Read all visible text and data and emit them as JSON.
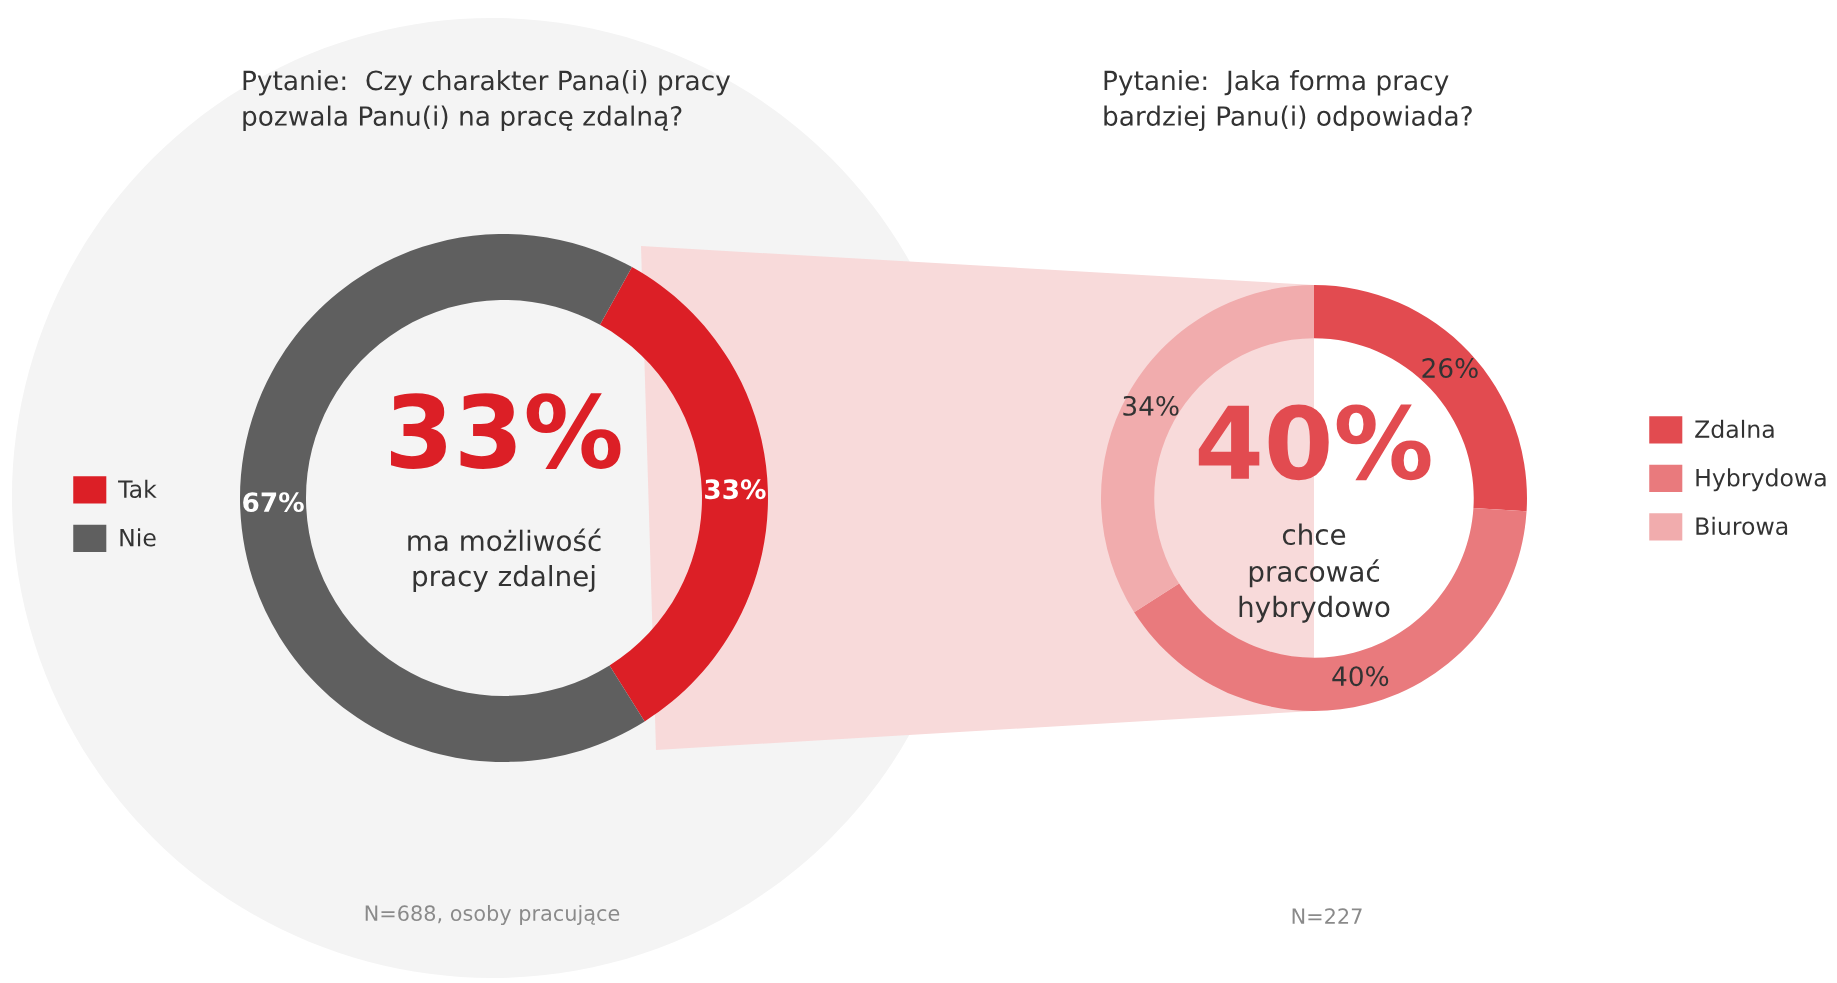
{
  "chart_data": [
    {
      "type": "donut",
      "title": "Pytanie:  Czy charakter Pana(i) pracy\npozwala Panu(i) na pracę zdalną?",
      "categories": [
        "Tak",
        "Nie"
      ],
      "values": [
        33,
        67
      ],
      "colors": [
        "#dc1f26",
        "#5f5f5f"
      ],
      "value_labels": [
        "33%",
        "67%"
      ],
      "legend": "left",
      "annotations": [
        "33%",
        "ma możliwość\npracy zdalnej",
        "N=688, osoby pracujące"
      ]
    },
    {
      "type": "donut",
      "title": "Pytanie:  Jaka forma pracy\nbardziej Panu(i) odpowiada?",
      "categories": [
        "Zdalna",
        "Hybrydowa",
        "Biurowa"
      ],
      "values": [
        26,
        40,
        34
      ],
      "colors": [
        "#e24b50",
        "#e97a7d",
        "#f1acad"
      ],
      "value_labels": [
        "26%",
        "40%",
        "34%"
      ],
      "legend": "right",
      "annotations": [
        "40%",
        "chce\npracować\nhybrydowo",
        "N=227"
      ]
    }
  ]
}
